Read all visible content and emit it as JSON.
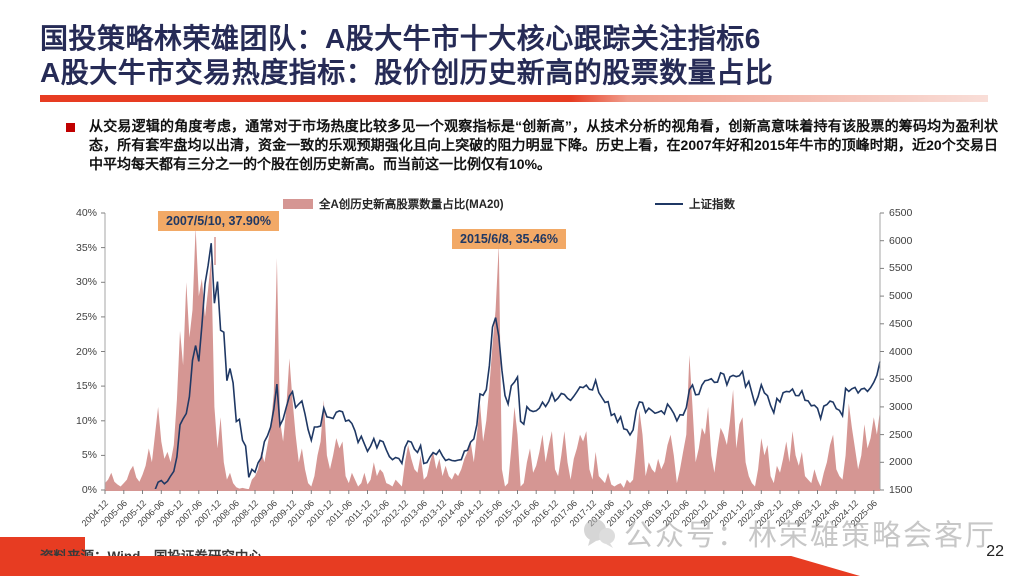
{
  "slide": {
    "title_line1": "国投策略林荣雄团队：A股大牛市十大核心跟踪关注指标6",
    "title_line2": "A股大牛市交易热度指标：股价创历史新高的股票数量占比",
    "body_text": "从交易逻辑的角度考虑，通常对于市场热度比较多见一个观察指标是“创新高”，从技术分析的视角看，创新高意味着持有该股票的筹码均为盈利状态，所有套牢盘均以出清，资金一致的乐观预期强化且向上突破的阻力明显下降。历史上看，在2007年好和2015年牛市的顶峰时期，近20个交易日中平均每天都有三分之一的个股在创历史新高。而当前这一比例仅有10%。",
    "source_text": "资料来源：Wind，国投证券研究中心",
    "watermark_text": "公众号：林荣雄策略会客厅",
    "page_number": "22"
  },
  "colors": {
    "accent_red": "#e73c22",
    "bullet_red": "#c00000",
    "title_navy": "#262b56",
    "area_fill": "#d59693",
    "line_navy": "#1f3864",
    "annotation_bg": "#f2a966",
    "axis_text": "#404040",
    "axis_line": "#a6a6a6",
    "bottom_axis": "#d59693"
  },
  "chart_data": {
    "type": "area+line",
    "title": "",
    "legend": [
      "全A创历史新高股票数量占比(MA20)",
      "上证指数"
    ],
    "legend_position": "top",
    "grid": false,
    "x_start": "2004-12",
    "x_end": "2025-08",
    "interval": "monthly",
    "annotations": [
      {
        "label": "2007/5/10, 37.90%",
        "date": "2007-05-10",
        "value_pct": 37.9
      },
      {
        "label": "2015/6/8, 35.46%",
        "date": "2015-06-08",
        "value_pct": 35.46
      }
    ],
    "y_left": {
      "min": 0,
      "max": 40,
      "unit": "%",
      "labels": [
        "40%",
        "35%",
        "30%",
        "25%",
        "20%",
        "15%",
        "10%",
        "5%",
        "0%"
      ]
    },
    "y_right": {
      "min": 1500,
      "max": 6500,
      "labels": [
        "6500",
        "6000",
        "5500",
        "5000",
        "4500",
        "4000",
        "3500",
        "3000",
        "2500",
        "2000",
        "1500"
      ]
    },
    "x_tick_labels": [
      "2004-12",
      "2005-06",
      "2005-12",
      "2006-06",
      "2006-12",
      "2007-06",
      "2007-12",
      "2008-06",
      "2008-12",
      "2009-06",
      "2009-12",
      "2010-06",
      "2010-12",
      "2011-06",
      "2011-12",
      "2012-06",
      "2012-12",
      "2013-06",
      "2013-12",
      "2014-06",
      "2014-12",
      "2015-06",
      "2015-12",
      "2016-06",
      "2016-12",
      "2017-06",
      "2017-12",
      "2018-06",
      "2018-12",
      "2019-06",
      "2019-12",
      "2020-06",
      "2020-12",
      "2021-06",
      "2021-12",
      "2022-06",
      "2022-12",
      "2023-06",
      "2023-12",
      "2024-06",
      "2024-12",
      "2025-06"
    ],
    "series": [
      {
        "name": "全A创历史新高股票数量占比(MA20)",
        "axis": "left",
        "unit": "%",
        "style": "area",
        "values": [
          1.0,
          1.5,
          2.5,
          1.2,
          0.8,
          0.5,
          1.0,
          1.5,
          2.8,
          3.5,
          1.8,
          1.2,
          2.2,
          3.5,
          6.0,
          4.0,
          8.0,
          12.0,
          7.0,
          4.5,
          5.5,
          4.0,
          6.5,
          13.0,
          23.0,
          18.0,
          30.0,
          22.0,
          26.0,
          37.9,
          28.0,
          30.5,
          25.0,
          29.0,
          33.5,
          12.0,
          6.0,
          10.5,
          4.0,
          1.5,
          2.5,
          1.0,
          0.4,
          0.2,
          0.3,
          0.2,
          0.1,
          1.5,
          2.0,
          3.0,
          5.5,
          4.0,
          6.5,
          9.0,
          14.0,
          33.5,
          10.0,
          7.0,
          12.0,
          19.0,
          13.0,
          8.0,
          4.0,
          6.0,
          3.0,
          1.0,
          0.5,
          2.0,
          5.0,
          7.0,
          13.0,
          5.0,
          3.0,
          5.0,
          7.5,
          6.0,
          7.0,
          2.0,
          1.0,
          2.5,
          1.5,
          0.5,
          1.0,
          2.5,
          0.8,
          1.5,
          4.0,
          2.0,
          3.0,
          2.5,
          1.0,
          0.8,
          0.5,
          1.5,
          1.0,
          0.5,
          4.0,
          6.5,
          4.5,
          3.0,
          2.5,
          5.0,
          1.5,
          2.0,
          4.0,
          5.5,
          3.0,
          4.5,
          2.0,
          3.5,
          2.0,
          1.5,
          2.5,
          2.0,
          3.0,
          4.5,
          5.5,
          7.0,
          4.0,
          8.0,
          12.5,
          7.0,
          10.0,
          15.0,
          21.0,
          26.0,
          35.46,
          3.0,
          0.5,
          1.0,
          6.0,
          12.0,
          8.0,
          0.5,
          1.0,
          4.0,
          6.0,
          2.5,
          3.5,
          5.5,
          8.0,
          4.0,
          6.5,
          8.5,
          3.0,
          2.0,
          5.0,
          8.5,
          4.0,
          1.5,
          4.5,
          6.0,
          8.0,
          7.0,
          8.5,
          3.0,
          1.5,
          5.5,
          2.0,
          1.5,
          1.0,
          2.5,
          0.8,
          0.5,
          0.8,
          1.0,
          0.3,
          1.5,
          1.0,
          1.5,
          6.0,
          11.5,
          8.0,
          2.0,
          4.0,
          3.0,
          2.5,
          4.5,
          3.0,
          4.0,
          6.5,
          8.0,
          5.0,
          1.0,
          3.0,
          5.5,
          8.0,
          19.5,
          12.0,
          4.0,
          6.0,
          9.0,
          8.0,
          12.0,
          5.0,
          2.5,
          6.0,
          9.0,
          8.0,
          6.5,
          10.0,
          14.5,
          6.0,
          9.5,
          10.5,
          4.0,
          2.0,
          1.0,
          0.5,
          3.0,
          7.5,
          5.0,
          6.5,
          2.0,
          1.0,
          3.5,
          2.5,
          4.5,
          7.0,
          4.0,
          8.5,
          5.0,
          3.5,
          5.5,
          2.0,
          1.5,
          1.0,
          3.0,
          1.5,
          0.5,
          2.5,
          4.0,
          6.5,
          8.0,
          3.0,
          2.0,
          1.5,
          5.0,
          12.5,
          9.0,
          6.0,
          3.0,
          5.0,
          9.5,
          6.0,
          7.5,
          10.5,
          8.0,
          11.5
        ]
      },
      {
        "name": "上证指数",
        "axis": "right",
        "style": "line",
        "values": [
          1267,
          1191,
          1306,
          1181,
          1159,
          1060,
          1081,
          1083,
          1163,
          1155,
          1092,
          1099,
          1161,
          1258,
          1299,
          1298,
          1440,
          1641,
          1672,
          1612,
          1658,
          1752,
          1837,
          2099,
          2675,
          2786,
          2881,
          3184,
          3841,
          4109,
          3821,
          4471,
          5218,
          5552,
          5955,
          4871,
          5262,
          4383,
          4348,
          3473,
          3693,
          3433,
          2736,
          2776,
          2397,
          2294,
          1729,
          1871,
          1821,
          1991,
          2083,
          2373,
          2478,
          2633,
          2959,
          3412,
          2668,
          2779,
          2995,
          3195,
          3277,
          2989,
          3052,
          3109,
          2871,
          2592,
          2398,
          2638,
          2639,
          2656,
          2979,
          2820,
          2808,
          2790,
          2905,
          2928,
          2911,
          2743,
          2762,
          2701,
          2567,
          2359,
          2470,
          2333,
          2199,
          2293,
          2428,
          2262,
          2396,
          2372,
          2225,
          2103,
          2047,
          2086,
          2068,
          1980,
          2269,
          2385,
          2365,
          2237,
          2177,
          2301,
          1979,
          1994,
          2098,
          2175,
          2141,
          2220,
          2116,
          2033,
          2056,
          2033,
          2026,
          2039,
          2048,
          2202,
          2217,
          2364,
          2420,
          2683,
          3235,
          3210,
          3310,
          3748,
          4442,
          4612,
          4277,
          3664,
          3206,
          3053,
          3383,
          3445,
          3539,
          2738,
          2688,
          3004,
          2938,
          2917,
          2930,
          2979,
          3085,
          3005,
          3100,
          3250,
          3104,
          3159,
          3242,
          3223,
          3155,
          3117,
          3192,
          3273,
          3361,
          3349,
          3393,
          3317,
          3307,
          3481,
          3259,
          3169,
          3082,
          3095,
          2847,
          2876,
          2725,
          2821,
          2603,
          2588,
          2494,
          2585,
          2941,
          3091,
          3078,
          2899,
          2979,
          2933,
          2886,
          2905,
          2929,
          2872,
          3050,
          2977,
          2880,
          2750,
          2860,
          2852,
          2985,
          3310,
          3396,
          3218,
          3225,
          3392,
          3473,
          3483,
          3509,
          3442,
          3447,
          3615,
          3591,
          3397,
          3544,
          3568,
          3547,
          3564,
          3640,
          3361,
          3462,
          3252,
          3047,
          3186,
          3399,
          3253,
          3202,
          3024,
          2893,
          3151,
          3089,
          3256,
          3280,
          3273,
          3323,
          3205,
          3202,
          3291,
          3120,
          3110,
          3019,
          3030,
          2975,
          2789,
          3015,
          3041,
          3104,
          3087,
          2967,
          2938,
          2842,
          3336,
          3280,
          3326,
          3352,
          3251,
          3321,
          3336,
          3279,
          3347,
          3444,
          3573,
          3820
        ]
      }
    ]
  }
}
